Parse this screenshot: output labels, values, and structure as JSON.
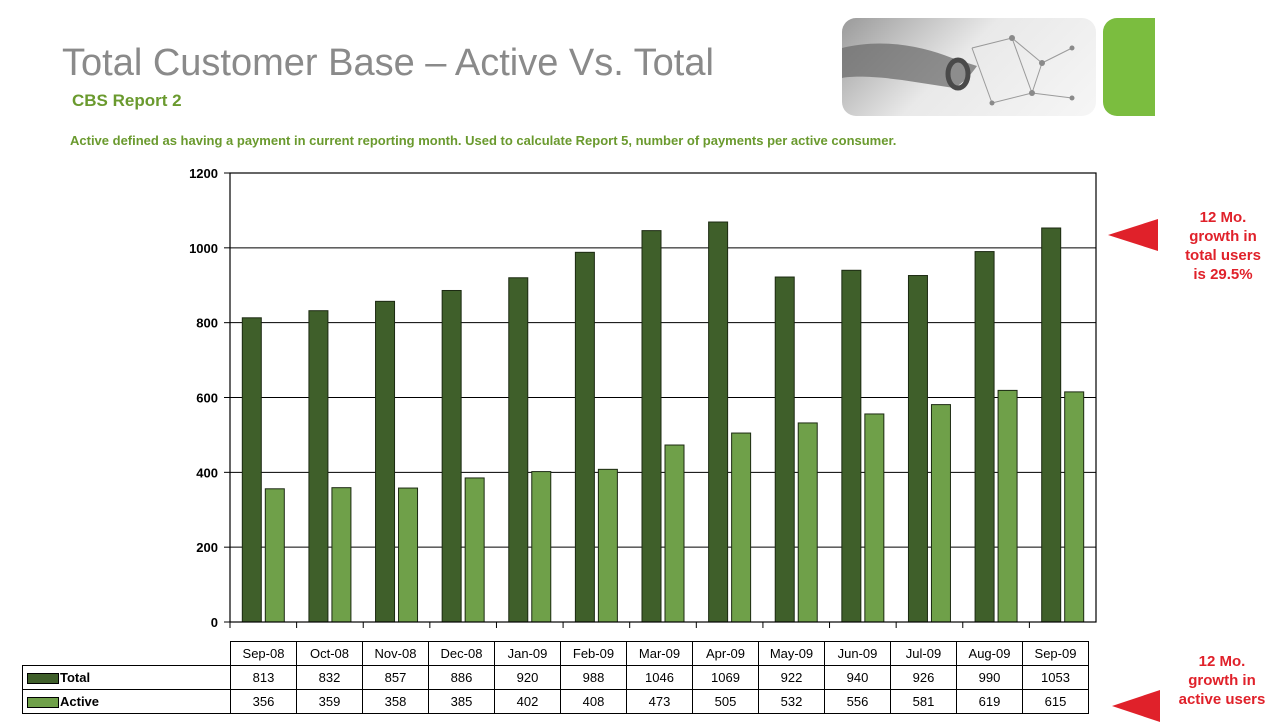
{
  "header": {
    "title": "Total Customer Base – Active Vs. Total",
    "subtitle": "CBS Report 2",
    "note": "Active defined as having a payment in current reporting month. Used to calculate Report 5, number of payments per active consumer."
  },
  "annotations": {
    "total_growth": [
      "12 Mo.",
      "growth in",
      "total users",
      "is 29.5%"
    ],
    "active_growth": [
      "12 Mo.",
      "growth in",
      "active users"
    ]
  },
  "colors": {
    "total": "#3f5f2a",
    "active": "#6fa049",
    "accent_red": "#e0212a",
    "brand_green": "#7bbd3f"
  },
  "chart_data": {
    "type": "bar",
    "categories": [
      "Sep-08",
      "Oct-08",
      "Nov-08",
      "Dec-08",
      "Jan-09",
      "Feb-09",
      "Mar-09",
      "Apr-09",
      "May-09",
      "Jun-09",
      "Jul-09",
      "Aug-09",
      "Sep-09"
    ],
    "series": [
      {
        "name": "Total",
        "values": [
          813,
          832,
          857,
          886,
          920,
          988,
          1046,
          1069,
          922,
          940,
          926,
          990,
          1053
        ]
      },
      {
        "name": "Active",
        "values": [
          356,
          359,
          358,
          385,
          402,
          408,
          473,
          505,
          532,
          556,
          581,
          619,
          615
        ]
      }
    ],
    "ylim": [
      0,
      1200
    ],
    "yticks": [
      0,
      200,
      400,
      600,
      800,
      1000,
      1200
    ],
    "grid": true,
    "legend": "data-table"
  }
}
